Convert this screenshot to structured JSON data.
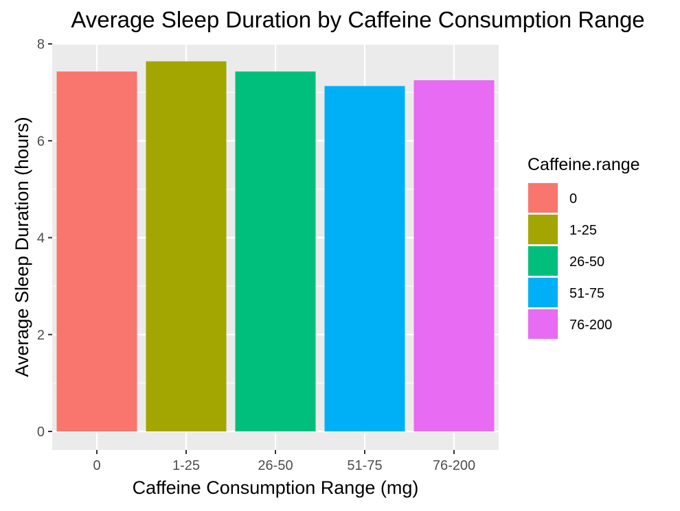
{
  "chart_data": {
    "type": "bar",
    "title": "Average Sleep Duration by Caffeine Consumption Range",
    "xlabel": "Caffeine Consumption Range (mg)",
    "ylabel": "Average Sleep Duration (hours)",
    "categories": [
      "0",
      "1-25",
      "26-50",
      "51-75",
      "76-200"
    ],
    "values": [
      7.43,
      7.64,
      7.43,
      7.13,
      7.25
    ],
    "colors": [
      "#F8766D",
      "#A3A500",
      "#00BF7D",
      "#00B0F6",
      "#E76BF3"
    ],
    "ylim": [
      0,
      8
    ],
    "yticks": [
      "0",
      "2",
      "4",
      "6",
      "8"
    ],
    "grid": true,
    "panel_background": "#EBEBEB",
    "legend": {
      "title": "Caffeine.range",
      "placement": "right",
      "entries": [
        "0",
        "1-25",
        "26-50",
        "51-75",
        "76-200"
      ]
    }
  }
}
